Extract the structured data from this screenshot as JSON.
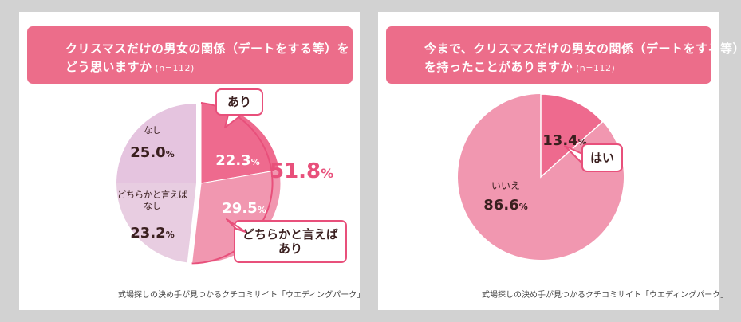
{
  "chart_data": [
    {
      "type": "pie",
      "title_line1": "クリスマスだけの男女の関係（デートをする等）を",
      "title_line2": "どう思いますか",
      "n_label": "(n=112)",
      "slices": [
        {
          "key": "ari",
          "label": "あり",
          "value": 22.3,
          "display": "22.3",
          "color": "#ee6a8e"
        },
        {
          "key": "dochira_ari",
          "label": "どちらかと言えばあり",
          "label_lines": [
            "どちらかと言えば",
            "あり"
          ],
          "value": 29.5,
          "display": "29.5",
          "color": "#f197b0"
        },
        {
          "key": "dochira_nashi",
          "label": "どちらかと言えばなし",
          "label_lines": [
            "どちらかと言えば",
            "なし"
          ],
          "value": 23.2,
          "display": "23.2",
          "color": "#e8cde1"
        },
        {
          "key": "nashi",
          "label": "なし",
          "value": 25.0,
          "display": "25.0",
          "color": "#e5c4df"
        }
      ],
      "combined": {
        "value": 51.8,
        "display": "51.8",
        "color": "#e8507b"
      },
      "percent_symbol": "%",
      "source": "式場探しの決め手が見つかるクチコミサイト「ウエディングパーク」"
    },
    {
      "type": "pie",
      "title_line1": "今まで、クリスマスだけの男女の関係（デートをする等）",
      "title_line2": "を持ったことがありますか",
      "n_label": "(n=112)",
      "slices": [
        {
          "key": "hai",
          "label": "はい",
          "value": 13.4,
          "display": "13.4",
          "color": "#ee6a8e"
        },
        {
          "key": "iie",
          "label": "いいえ",
          "value": 86.6,
          "display": "86.6",
          "color": "#f197b0"
        }
      ],
      "percent_symbol": "%",
      "source": "式場探しの決め手が見つかるクチコミサイト「ウエディングパーク」"
    }
  ]
}
